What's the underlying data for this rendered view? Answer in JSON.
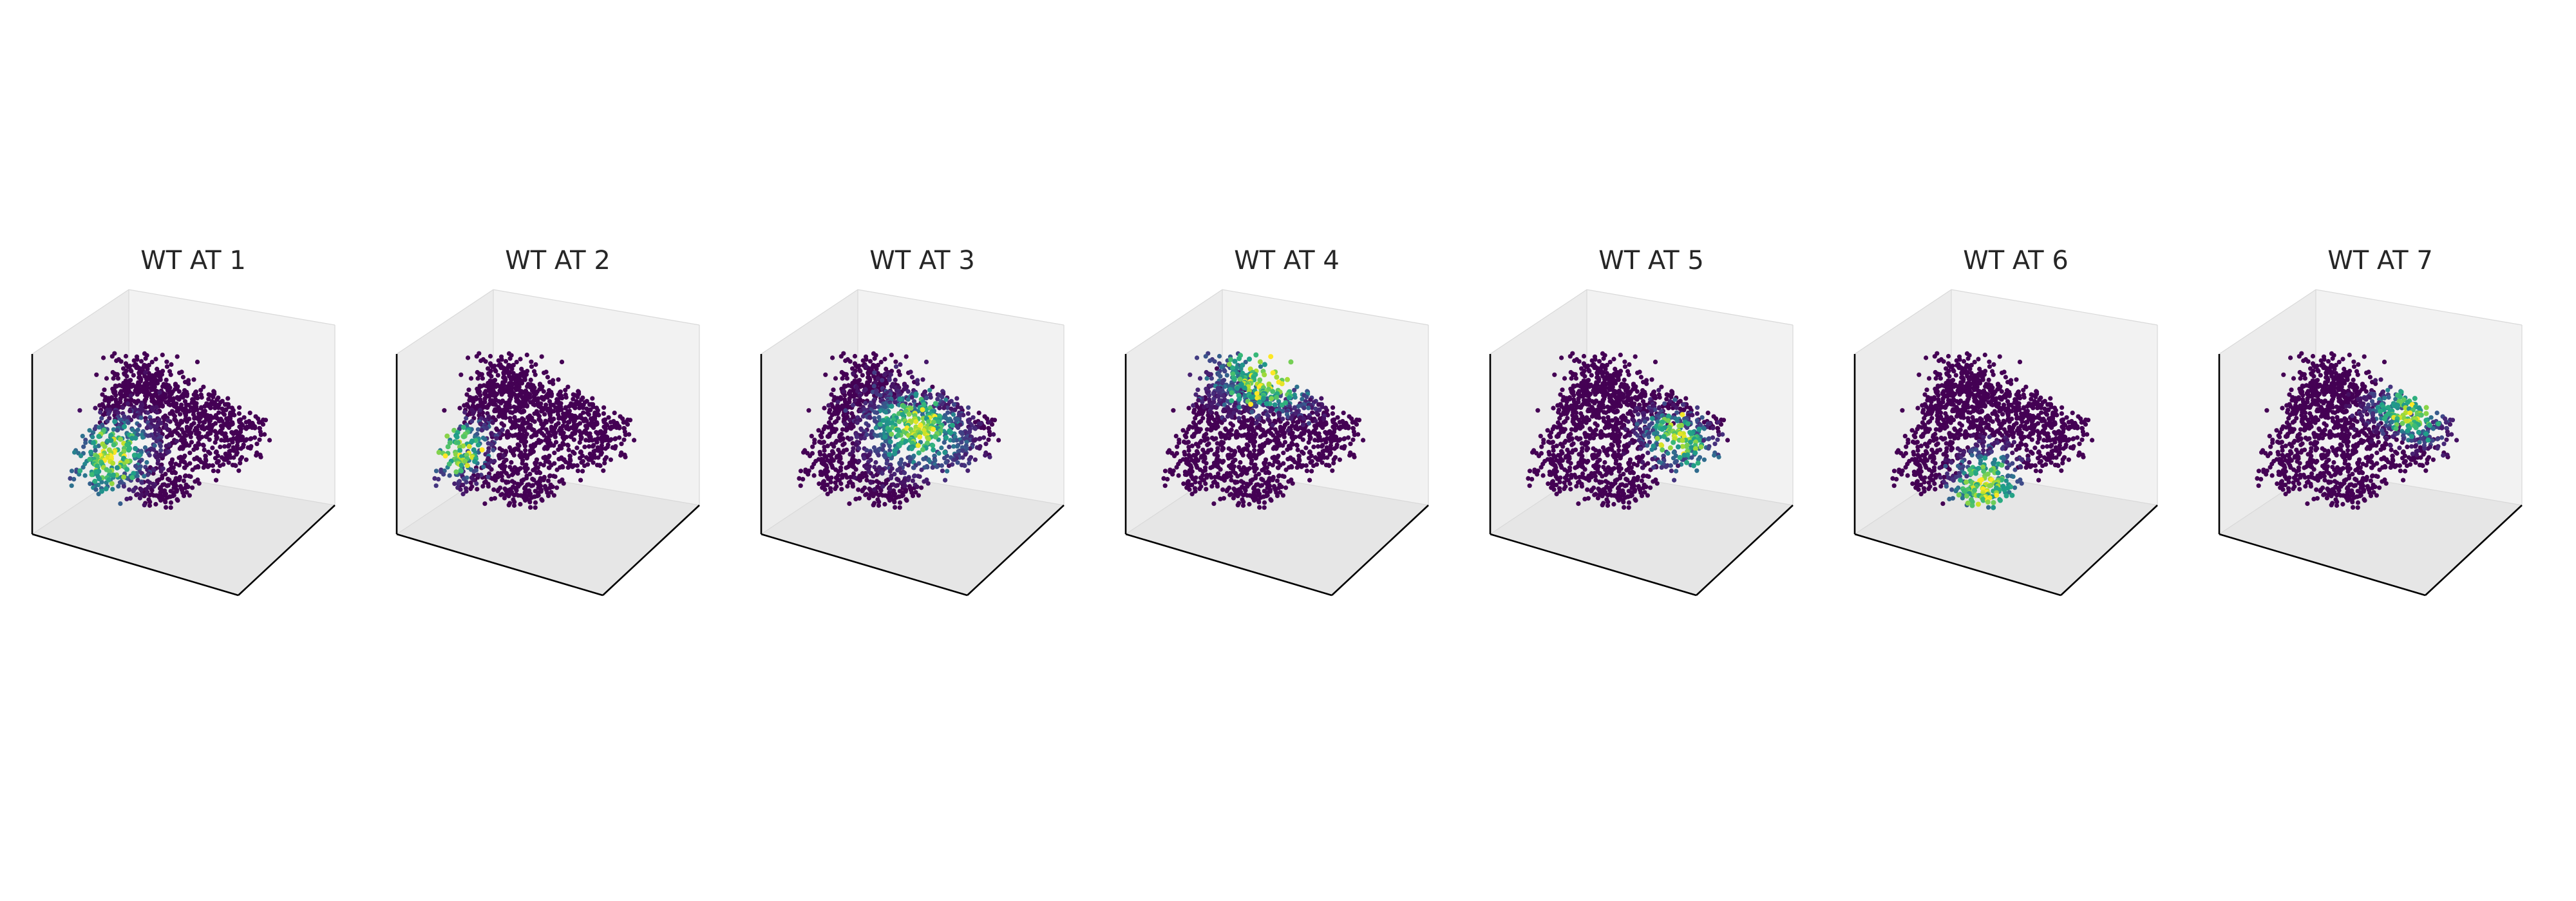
{
  "figure": {
    "colormap": "viridis",
    "background": "#ffffff",
    "pane_colors": [
      "#f2f2f2",
      "#ececec",
      "#e6e6e6"
    ],
    "axis_line_color": "#000000"
  },
  "chart_data": [
    {
      "type": "scatter",
      "projection": "3d",
      "title": "WT AT 1",
      "xlabel": "",
      "ylabel": "",
      "zlabel": "",
      "grid": false,
      "ticks": false,
      "highlight": {
        "u": 0.22,
        "v": 0.78,
        "spread": 0.15
      }
    },
    {
      "type": "scatter",
      "projection": "3d",
      "title": "WT AT 2",
      "xlabel": "",
      "ylabel": "",
      "zlabel": "",
      "grid": false,
      "ticks": false,
      "highlight": {
        "u": 0.08,
        "v": 0.75,
        "spread": 0.11
      }
    },
    {
      "type": "scatter",
      "projection": "3d",
      "title": "WT AT 3",
      "xlabel": "",
      "ylabel": "",
      "zlabel": "",
      "grid": false,
      "ticks": false,
      "highlight": {
        "u": 0.62,
        "v": 0.42,
        "spread": 0.17
      }
    },
    {
      "type": "scatter",
      "projection": "3d",
      "title": "WT AT 4",
      "xlabel": "",
      "ylabel": "",
      "zlabel": "",
      "grid": false,
      "ticks": false,
      "highlight": {
        "u": 0.32,
        "v": 0.05,
        "spread": 0.16
      }
    },
    {
      "type": "scatter",
      "projection": "3d",
      "title": "WT AT 5",
      "xlabel": "",
      "ylabel": "",
      "zlabel": "",
      "grid": false,
      "ticks": false,
      "highlight": {
        "u": 0.82,
        "v": 0.35,
        "spread": 0.12
      }
    },
    {
      "type": "scatter",
      "projection": "3d",
      "title": "WT AT 6",
      "xlabel": "",
      "ylabel": "",
      "zlabel": "",
      "grid": false,
      "ticks": false,
      "highlight": {
        "u": 0.68,
        "v": 0.88,
        "spread": 0.13
      }
    },
    {
      "type": "scatter",
      "projection": "3d",
      "title": "WT AT 7",
      "xlabel": "",
      "ylabel": "",
      "zlabel": "",
      "grid": false,
      "ticks": false,
      "highlight": {
        "u": 0.7,
        "v": 0.15,
        "spread": 0.12
      }
    }
  ]
}
